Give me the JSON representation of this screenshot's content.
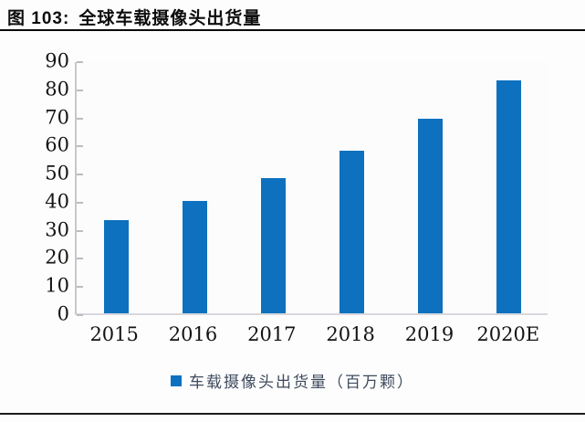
{
  "figure": {
    "label": "图 103:",
    "title": "全球车载摄像头出货量"
  },
  "chart_data": {
    "type": "bar",
    "title": "全球车载摄像头出货量",
    "categories": [
      "2015",
      "2016",
      "2017",
      "2018",
      "2019",
      "2020E"
    ],
    "values": [
      33.5,
      40.4,
      48.4,
      58.1,
      69.7,
      83.6
    ],
    "series_name": "车载摄像头出货量（百万颗）",
    "xlabel": "",
    "ylabel": "",
    "ylim": [
      0,
      90
    ],
    "yticks": [
      0,
      10,
      20,
      30,
      40,
      50,
      60,
      70,
      80,
      90
    ],
    "grid": false,
    "legend_position": "bottom",
    "bar_color": "#0d71bf"
  },
  "legend": {
    "label": "车载摄像头出货量（百万颗）",
    "swatch_color": "#0d71bf"
  }
}
